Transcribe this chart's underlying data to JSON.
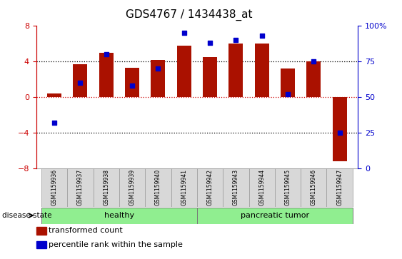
{
  "title": "GDS4767 / 1434438_at",
  "samples": [
    "GSM1159936",
    "GSM1159937",
    "GSM1159938",
    "GSM1159939",
    "GSM1159940",
    "GSM1159941",
    "GSM1159942",
    "GSM1159943",
    "GSM1159944",
    "GSM1159945",
    "GSM1159946",
    "GSM1159947"
  ],
  "transformed_count": [
    0.4,
    3.7,
    5.0,
    3.3,
    4.2,
    5.8,
    4.5,
    6.0,
    6.0,
    3.2,
    4.0,
    -7.2
  ],
  "percentile_rank": [
    32,
    60,
    80,
    58,
    70,
    95,
    88,
    90,
    93,
    52,
    75,
    25
  ],
  "bar_color": "#aa1100",
  "dot_color": "#0000cc",
  "healthy_count": 6,
  "tumor_count": 6,
  "healthy_label": "healthy",
  "tumor_label": "pancreatic tumor",
  "disease_state_label": "disease state",
  "legend_bar_label": "transformed count",
  "legend_dot_label": "percentile rank within the sample",
  "ylim_left": [
    -8,
    8
  ],
  "ylim_right": [
    0,
    100
  ],
  "yticks_left": [
    -8,
    -4,
    0,
    4,
    8
  ],
  "yticks_right": [
    0,
    25,
    50,
    75,
    100
  ],
  "ytick_labels_right": [
    "0",
    "25",
    "50",
    "75",
    "100%"
  ],
  "bar_width": 0.55
}
